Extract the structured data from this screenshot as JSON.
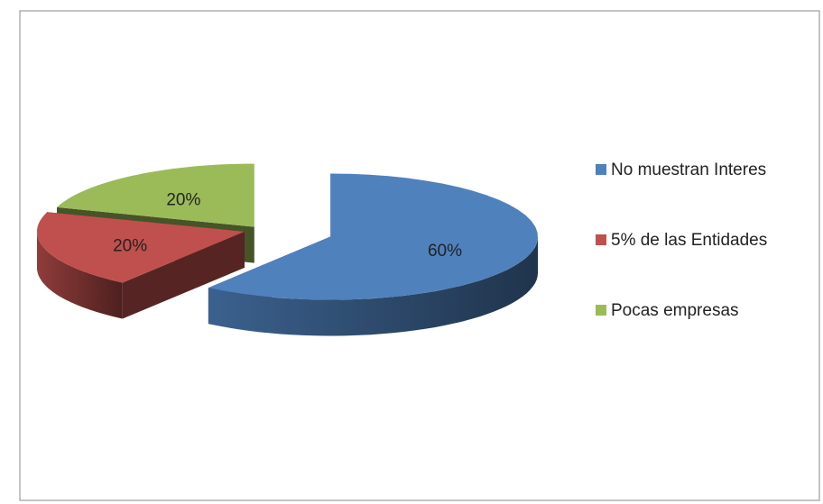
{
  "chart_data": {
    "type": "pie",
    "categories": [
      "No muestran Interes",
      "5% de las Entidades",
      "Pocas empresas"
    ],
    "values": [
      60,
      20,
      20
    ],
    "value_labels": [
      "60%",
      "20%",
      "20%"
    ],
    "colors": [
      "#4f81bd",
      "#c0504d",
      "#9bbb59"
    ],
    "legend": "right"
  }
}
